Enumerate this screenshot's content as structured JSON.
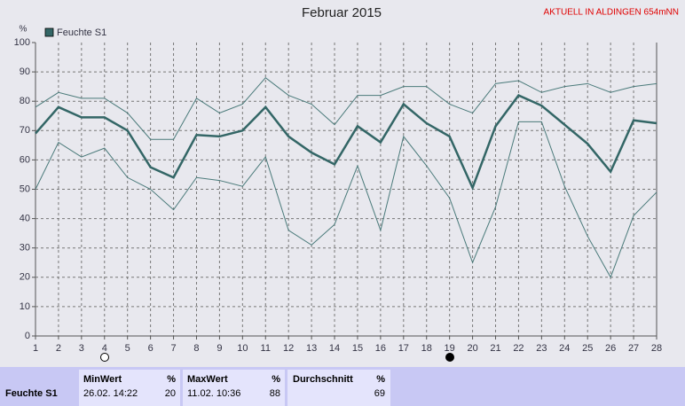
{
  "chart_data": {
    "type": "line",
    "title": "Februar 2015",
    "subtitle": "AKTUELL IN ALDINGEN 654mNN",
    "ylabel": "%",
    "x": [
      1,
      2,
      3,
      4,
      5,
      6,
      7,
      8,
      9,
      10,
      11,
      12,
      13,
      14,
      15,
      16,
      17,
      18,
      19,
      20,
      21,
      22,
      23,
      24,
      25,
      26,
      27,
      28
    ],
    "xlim": [
      1,
      28
    ],
    "xticks": [
      1,
      2,
      3,
      4,
      5,
      6,
      7,
      8,
      9,
      10,
      11,
      12,
      13,
      14,
      15,
      16,
      17,
      18,
      19,
      20,
      21,
      22,
      23,
      24,
      25,
      26,
      27,
      28
    ],
    "ylim": [
      0,
      100
    ],
    "yticks": [
      0,
      10,
      20,
      30,
      40,
      50,
      60,
      70,
      80,
      90,
      100
    ],
    "grid": true,
    "series": [
      {
        "color": "#4a7a7a",
        "values": [
          78,
          83,
          81,
          81,
          76,
          67,
          67,
          81,
          76,
          79,
          88,
          82,
          79,
          72,
          82,
          82,
          85,
          85,
          79,
          76,
          86,
          87,
          83,
          85,
          86,
          83,
          85,
          86
        ]
      },
      {
        "name": "Feuchte S1",
        "color": "#336666",
        "values": [
          69,
          78,
          74.5,
          74.5,
          70,
          57.5,
          54,
          68.5,
          68,
          70,
          78,
          68,
          62.5,
          58.5,
          71.5,
          66,
          79,
          72.5,
          68,
          50.5,
          71.5,
          82,
          78.5,
          72,
          65.5,
          56,
          73.5,
          72.5
        ]
      },
      {
        "color": "#4a7a7a",
        "values": [
          50,
          66,
          61,
          64,
          54,
          50,
          43,
          54,
          53,
          51,
          61,
          36,
          31,
          38,
          58,
          36,
          68,
          58,
          47,
          25,
          44,
          73,
          73,
          51,
          34,
          20,
          41,
          49
        ]
      }
    ]
  },
  "summary": {
    "label": "Feuchte S1",
    "min": {
      "header": "MinWert",
      "unit": "%",
      "time": "26.02. 14:22",
      "value": 20
    },
    "max": {
      "header": "MaxWert",
      "unit": "%",
      "time": "11.02. 10:36",
      "value": 88
    },
    "avg": {
      "header": "Durchschnitt",
      "unit": "%",
      "value": 69
    }
  }
}
